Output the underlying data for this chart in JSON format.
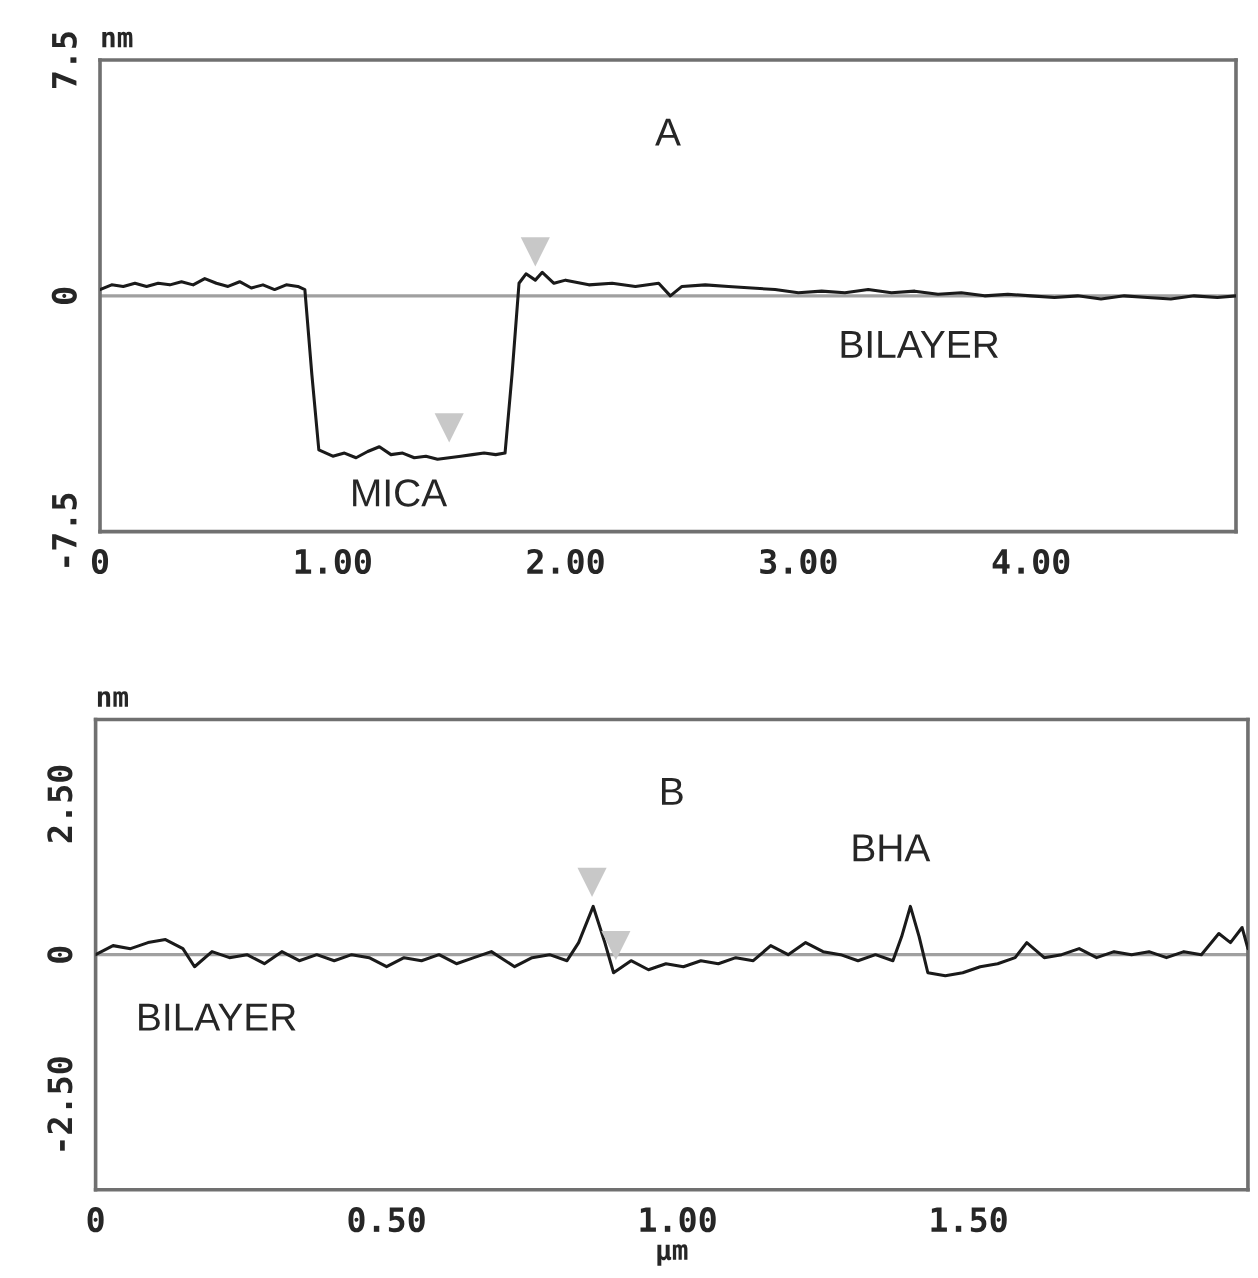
{
  "chart_data": [
    {
      "type": "line",
      "title": "A",
      "ylabel": "nm",
      "xlim": [
        0,
        4.88
      ],
      "ylim": [
        -7.5,
        7.5
      ],
      "xticks": [
        0,
        {
          "value": 1,
          "label": "1.00"
        },
        {
          "value": 2,
          "label": "2.00"
        },
        {
          "value": 3,
          "label": "3.00"
        },
        {
          "value": 4,
          "label": "4.00"
        }
      ],
      "yticks": [
        -7.5,
        0,
        7.5
      ],
      "grid": false,
      "ref_lines": [
        {
          "axis": "y",
          "value": 0,
          "color": "#a0a0a0"
        }
      ],
      "annotations": [
        "MICA",
        "BILAYER"
      ],
      "series": [
        {
          "color": "#1a1a1a",
          "x": [
            0,
            0.05,
            0.1,
            0.15,
            0.2,
            0.25,
            0.3,
            0.35,
            0.4,
            0.45,
            0.5,
            0.55,
            0.6,
            0.65,
            0.7,
            0.75,
            0.8,
            0.85,
            0.88,
            0.91,
            0.94,
            1.0,
            1.05,
            1.1,
            1.15,
            1.2,
            1.25,
            1.3,
            1.35,
            1.4,
            1.45,
            1.5,
            1.55,
            1.6,
            1.65,
            1.7,
            1.74,
            1.77,
            1.8,
            1.83,
            1.87,
            1.9,
            1.95,
            2.0,
            2.1,
            2.2,
            2.3,
            2.4,
            2.45,
            2.5,
            2.6,
            2.7,
            2.8,
            2.9,
            3.0,
            3.1,
            3.2,
            3.3,
            3.4,
            3.5,
            3.6,
            3.7,
            3.8,
            3.9,
            4.0,
            4.1,
            4.2,
            4.3,
            4.4,
            4.5,
            4.6,
            4.7,
            4.8,
            4.88
          ],
          "values": [
            0.2,
            0.35,
            0.3,
            0.4,
            0.3,
            0.4,
            0.35,
            0.45,
            0.35,
            0.55,
            0.4,
            0.3,
            0.45,
            0.25,
            0.35,
            0.2,
            0.35,
            0.3,
            0.2,
            -2.5,
            -4.9,
            -5.1,
            -5.0,
            -5.15,
            -4.95,
            -4.8,
            -5.05,
            -5.0,
            -5.15,
            -5.1,
            -5.2,
            -5.15,
            -5.1,
            -5.05,
            -5.0,
            -5.05,
            -5.0,
            -2.5,
            0.4,
            0.7,
            0.5,
            0.75,
            0.4,
            0.5,
            0.35,
            0.4,
            0.3,
            0.4,
            0.0,
            0.3,
            0.35,
            0.3,
            0.25,
            0.2,
            0.1,
            0.15,
            0.1,
            0.2,
            0.1,
            0.15,
            0.05,
            0.1,
            0.0,
            0.05,
            0.0,
            -0.05,
            0.0,
            -0.1,
            0.0,
            -0.05,
            -0.1,
            0.0,
            -0.05,
            0.0
          ]
        },
        {
          "type": "scatter",
          "color": "#c8c8c8",
          "marker": "triangle",
          "x": [
            1.5,
            1.87
          ],
          "values": [
            -4.2,
            1.4
          ]
        }
      ]
    },
    {
      "type": "line",
      "title": "B",
      "ylabel": "nm",
      "xlabel": "µm",
      "xlim": [
        0,
        1.98
      ],
      "ylim": [
        -3.9,
        3.9
      ],
      "xticks": [
        0,
        {
          "value": 0.5,
          "label": "0.50"
        },
        {
          "value": 1,
          "label": "1.00"
        },
        {
          "value": 1.5,
          "label": "1.50"
        }
      ],
      "yticks": [
        {
          "value": -2.5,
          "label": "-2.50"
        },
        0,
        {
          "value": 2.5,
          "label": "2.50"
        }
      ],
      "grid": false,
      "ref_lines": [
        {
          "axis": "y",
          "value": 0,
          "color": "#a0a0a0"
        }
      ],
      "annotations": [
        "BILAYER",
        "BHA"
      ],
      "series": [
        {
          "color": "#1a1a1a",
          "x": [
            0,
            0.03,
            0.06,
            0.09,
            0.12,
            0.15,
            0.17,
            0.2,
            0.23,
            0.26,
            0.29,
            0.32,
            0.35,
            0.38,
            0.41,
            0.44,
            0.47,
            0.5,
            0.53,
            0.56,
            0.59,
            0.62,
            0.65,
            0.68,
            0.72,
            0.75,
            0.78,
            0.81,
            0.83,
            0.855,
            0.875,
            0.89,
            0.92,
            0.95,
            0.98,
            1.01,
            1.04,
            1.07,
            1.1,
            1.13,
            1.16,
            1.19,
            1.22,
            1.25,
            1.28,
            1.31,
            1.34,
            1.37,
            1.385,
            1.4,
            1.415,
            1.43,
            1.46,
            1.49,
            1.52,
            1.55,
            1.58,
            1.6,
            1.63,
            1.66,
            1.69,
            1.72,
            1.75,
            1.78,
            1.81,
            1.84,
            1.87,
            1.9,
            1.93,
            1.95,
            1.97,
            1.98
          ],
          "values": [
            0.0,
            0.15,
            0.1,
            0.2,
            0.25,
            0.1,
            -0.2,
            0.05,
            -0.05,
            0.0,
            -0.15,
            0.05,
            -0.1,
            0.0,
            -0.1,
            0.0,
            -0.05,
            -0.2,
            -0.05,
            -0.1,
            0.0,
            -0.15,
            -0.05,
            0.05,
            -0.2,
            -0.05,
            0.0,
            -0.1,
            0.2,
            0.8,
            0.2,
            -0.3,
            -0.1,
            -0.25,
            -0.15,
            -0.2,
            -0.1,
            -0.15,
            -0.05,
            -0.1,
            0.15,
            0.0,
            0.2,
            0.05,
            0.0,
            -0.1,
            0.0,
            -0.1,
            0.3,
            0.8,
            0.3,
            -0.3,
            -0.35,
            -0.3,
            -0.2,
            -0.15,
            -0.05,
            0.2,
            -0.05,
            0.0,
            0.1,
            -0.05,
            0.05,
            0.0,
            0.05,
            -0.05,
            0.05,
            0.0,
            0.35,
            0.2,
            0.45,
            0.1
          ]
        },
        {
          "type": "scatter",
          "color": "#c8c8c8",
          "marker": "triangle",
          "x": [
            0.853,
            0.894
          ],
          "values": [
            1.2,
            0.15
          ]
        }
      ]
    }
  ]
}
